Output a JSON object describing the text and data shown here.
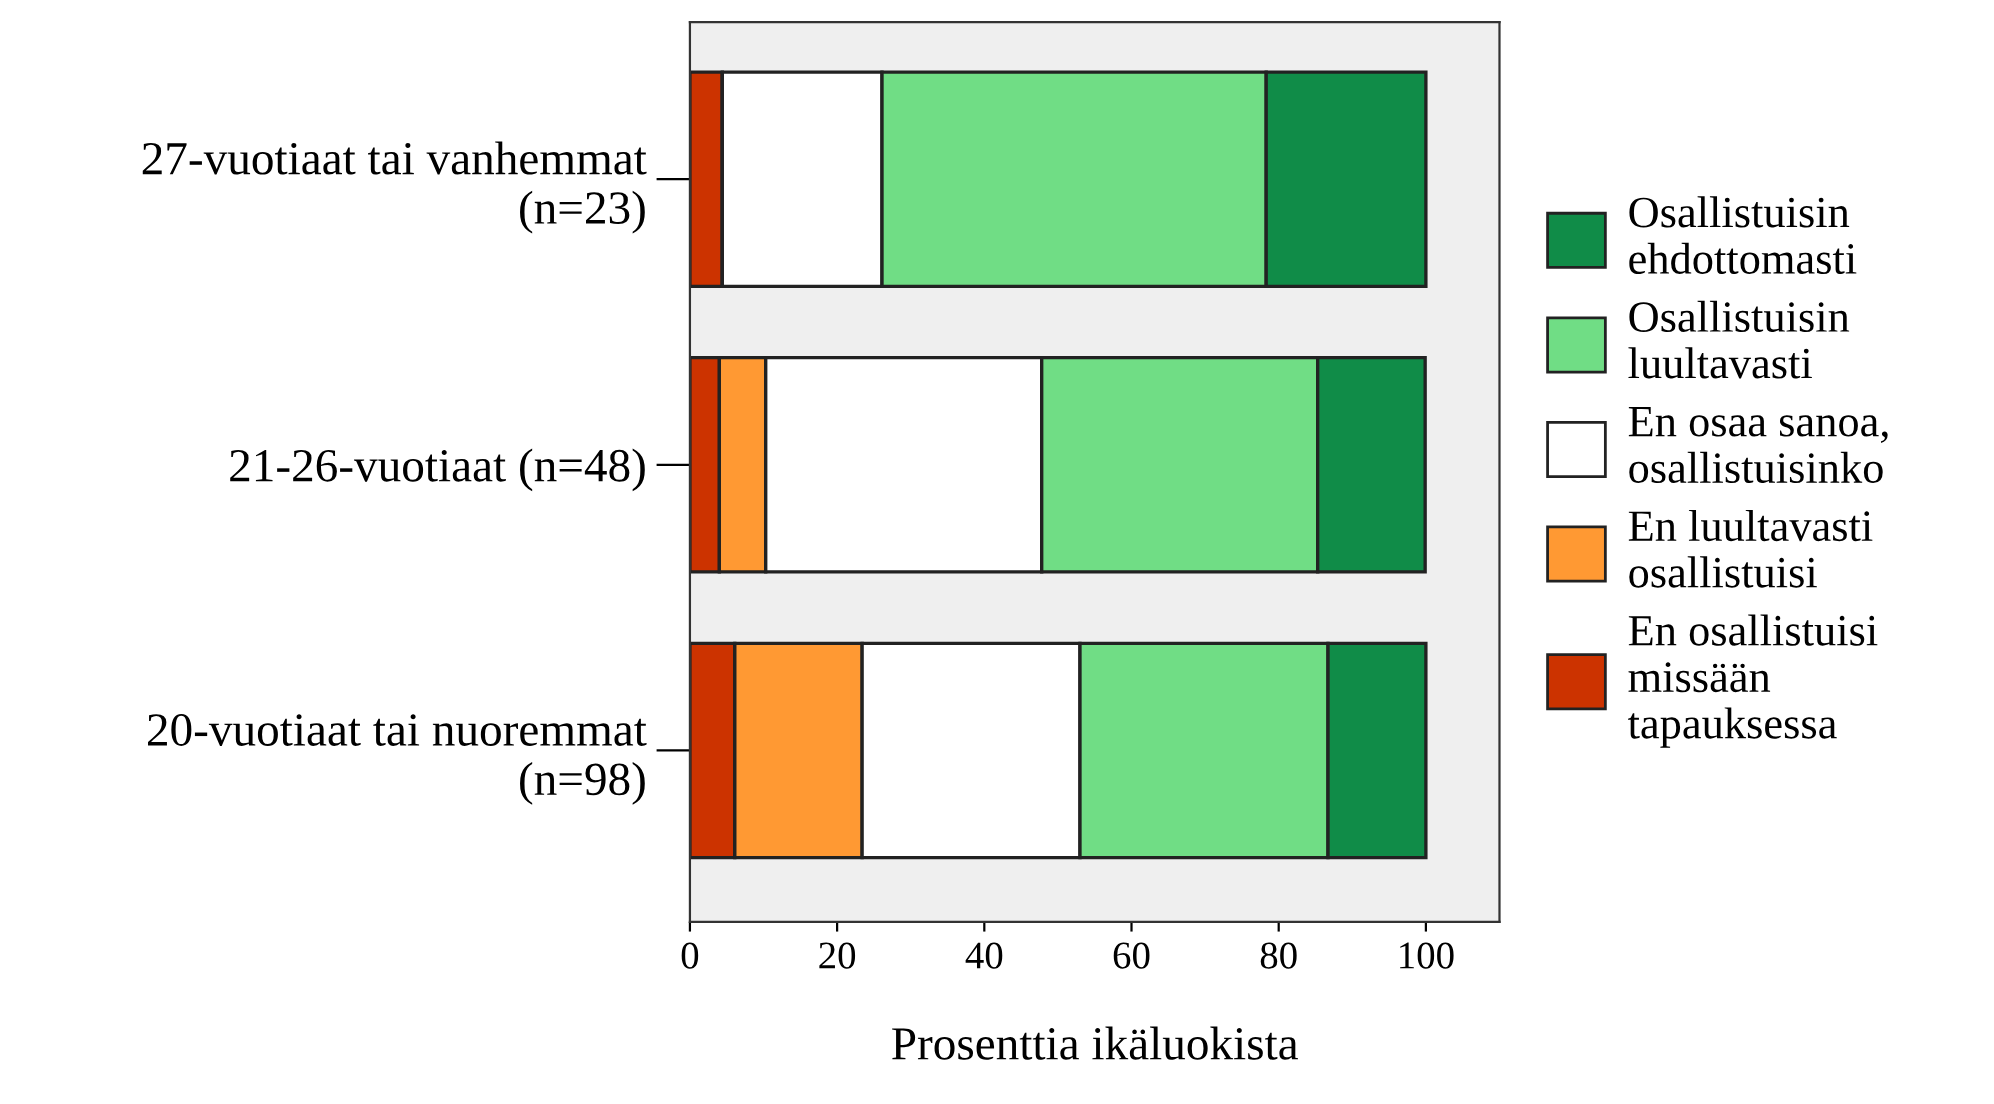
{
  "chart_data": {
    "type": "bar",
    "orientation": "horizontal",
    "stacked": true,
    "categories": [
      "27-vuotiaat tai vanhemmat\n(n=23)",
      "21-26-vuotiaat (n=48)",
      "20-vuotiaat tai nuoremmat\n(n=98)"
    ],
    "series": [
      {
        "name": "En osallistuisi\nmissään\ntapauksessa",
        "color": "#cc3300",
        "values": [
          4.4,
          4.0,
          6.1
        ]
      },
      {
        "name": "En luultavasti\nosallistuisi",
        "color": "#ff9933",
        "values": [
          0,
          6.3,
          17.3
        ]
      },
      {
        "name": "En osaa sanoa,\nosallistuisinko",
        "color": "#ffffff",
        "values": [
          21.7,
          37.5,
          29.6
        ]
      },
      {
        "name": "Osallistuisin\nluultavasti",
        "color": "#70dd85",
        "values": [
          52.2,
          37.5,
          33.7
        ]
      },
      {
        "name": "Osallistuisin\nehdottomasti",
        "color": "#108c48",
        "values": [
          21.7,
          14.6,
          13.3
        ]
      }
    ],
    "xlabel": "Prosenttia ikäluokista",
    "xlim": [
      0,
      110
    ],
    "xticks": [
      0,
      20,
      40,
      60,
      80,
      100
    ],
    "grid": false,
    "legend": "right"
  }
}
